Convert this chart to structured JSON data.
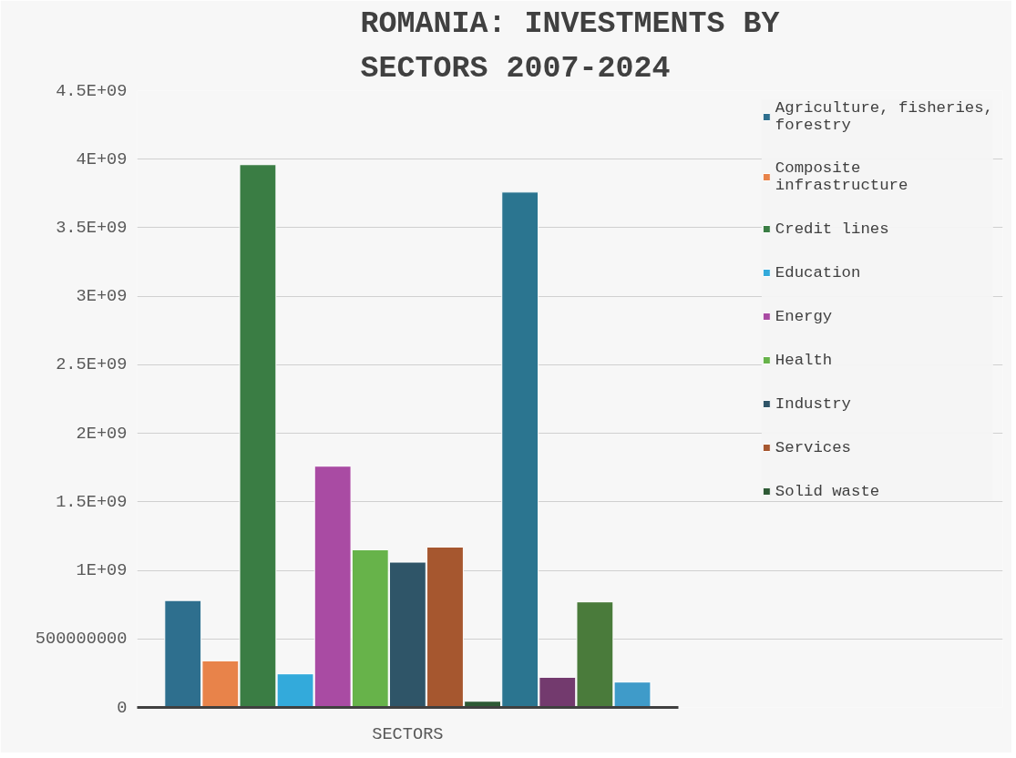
{
  "chart_data": {
    "type": "bar",
    "title": "ROMANIA: INVESTMENTS BY SECTORS 2007-2024",
    "categories": [
      "SECTORS"
    ],
    "series": [
      {
        "name": "Agriculture, fisheries, forestry",
        "color": "#2e6f8e",
        "values": [
          780000000
        ]
      },
      {
        "name": "Composite infrastructure",
        "color": "#e8834a",
        "values": [
          340000000
        ]
      },
      {
        "name": "Credit lines",
        "color": "#3a7d44",
        "values": [
          3960000000
        ]
      },
      {
        "name": "Education",
        "color": "#33aadb",
        "values": [
          245000000
        ]
      },
      {
        "name": "Energy",
        "color": "#a94ba3",
        "values": [
          1760000000
        ]
      },
      {
        "name": "Health",
        "color": "#67b34a",
        "values": [
          1150000000
        ]
      },
      {
        "name": "Industry",
        "color": "#2f5568",
        "values": [
          1060000000
        ]
      },
      {
        "name": "Services",
        "color": "#a6572f",
        "values": [
          1170000000
        ]
      },
      {
        "name": "Solid waste",
        "color": "#2e5a35",
        "values": [
          45000000
        ]
      },
      {
        "color": "#2b7590",
        "values": [
          3760000000
        ]
      },
      {
        "color": "#733a6e",
        "values": [
          220000000
        ]
      },
      {
        "color": "#4a7b3b",
        "values": [
          770000000
        ]
      },
      {
        "color": "#3f9bc9",
        "values": [
          185000000
        ]
      }
    ],
    "ylim": [
      0,
      4500000000
    ],
    "yticks": [
      0,
      500000000,
      {
        "value": 1000000000,
        "label": "1E+09"
      },
      {
        "value": 1500000000,
        "label": "1.5E+09"
      },
      {
        "value": 2000000000,
        "label": "2E+09"
      },
      {
        "value": 2500000000,
        "label": "2.5E+09"
      },
      {
        "value": 3000000000,
        "label": "3E+09"
      },
      {
        "value": 3500000000,
        "label": "3.5E+09"
      },
      {
        "value": 4000000000,
        "label": "4E+09"
      },
      {
        "value": 4500000000,
        "label": "4.5E+09"
      }
    ],
    "grid": "y",
    "legend": "right"
  }
}
